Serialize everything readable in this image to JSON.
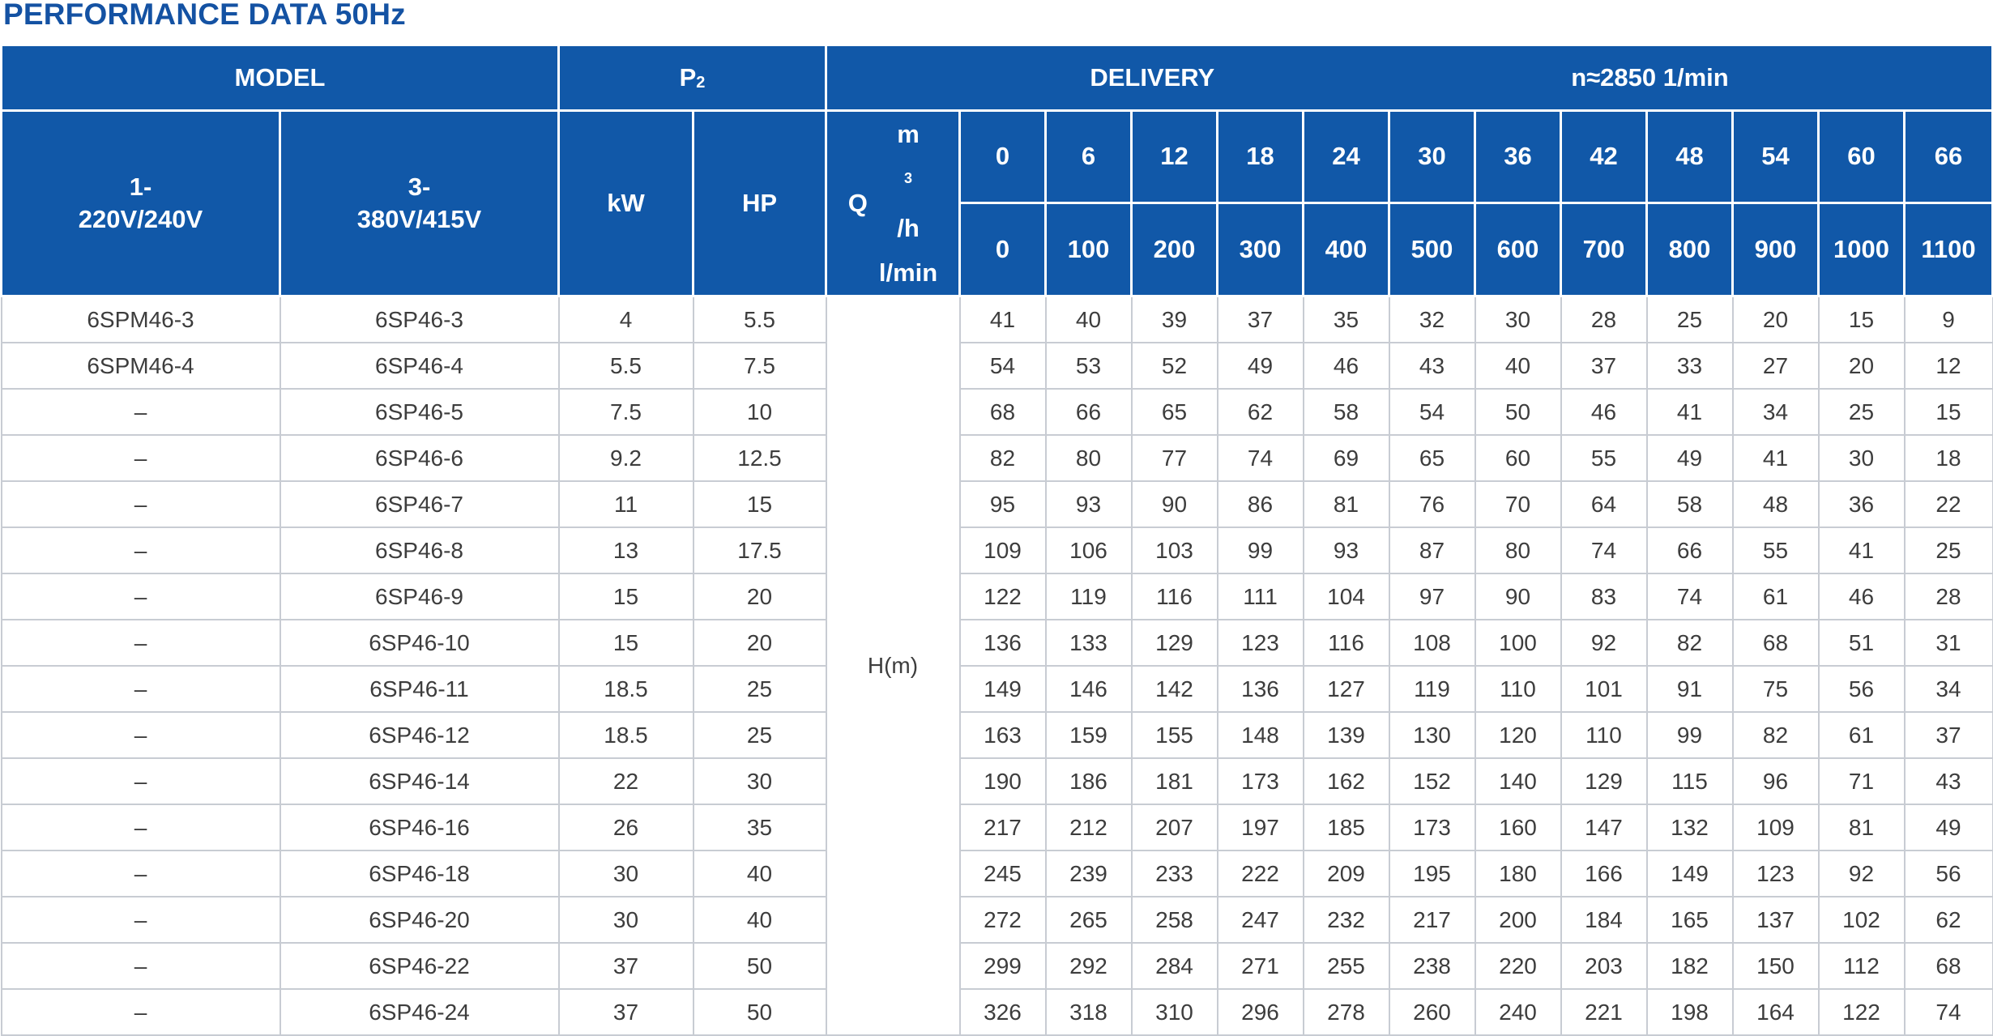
{
  "title": "PERFORMANCE DATA 50Hz",
  "header": {
    "model": "MODEL",
    "p2_main": "P",
    "p2_sub": "2",
    "delivery": "DELIVERY",
    "speed": "n≈2850  1/min",
    "single_phase": [
      "1-",
      "220V/240V"
    ],
    "three_phase": [
      "3-",
      "380V/415V"
    ],
    "kw": "kW",
    "hp": "HP",
    "q": "Q",
    "m3h_base": "m",
    "m3h_sup": "3",
    "m3h_tail": "/h",
    "lmin": "l/min",
    "flow_m3h": [
      "0",
      "6",
      "12",
      "18",
      "24",
      "30",
      "36",
      "42",
      "48",
      "54",
      "60",
      "66"
    ],
    "flow_lmin": [
      "0",
      "100",
      "200",
      "300",
      "400",
      "500",
      "600",
      "700",
      "800",
      "900",
      "1000",
      "1100"
    ]
  },
  "head_label": "H(m)",
  "rows": [
    {
      "m1": "6SPM46-3",
      "m3": "6SP46-3",
      "kw": "4",
      "hp": "5.5",
      "h": [
        "41",
        "40",
        "39",
        "37",
        "35",
        "32",
        "30",
        "28",
        "25",
        "20",
        "15",
        "9"
      ]
    },
    {
      "m1": "6SPM46-4",
      "m3": "6SP46-4",
      "kw": "5.5",
      "hp": "7.5",
      "h": [
        "54",
        "53",
        "52",
        "49",
        "46",
        "43",
        "40",
        "37",
        "33",
        "27",
        "20",
        "12"
      ]
    },
    {
      "m1": "–",
      "m3": "6SP46-5",
      "kw": "7.5",
      "hp": "10",
      "h": [
        "68",
        "66",
        "65",
        "62",
        "58",
        "54",
        "50",
        "46",
        "41",
        "34",
        "25",
        "15"
      ]
    },
    {
      "m1": "–",
      "m3": "6SP46-6",
      "kw": "9.2",
      "hp": "12.5",
      "h": [
        "82",
        "80",
        "77",
        "74",
        "69",
        "65",
        "60",
        "55",
        "49",
        "41",
        "30",
        "18"
      ]
    },
    {
      "m1": "–",
      "m3": "6SP46-7",
      "kw": "11",
      "hp": "15",
      "h": [
        "95",
        "93",
        "90",
        "86",
        "81",
        "76",
        "70",
        "64",
        "58",
        "48",
        "36",
        "22"
      ]
    },
    {
      "m1": "–",
      "m3": "6SP46-8",
      "kw": "13",
      "hp": "17.5",
      "h": [
        "109",
        "106",
        "103",
        "99",
        "93",
        "87",
        "80",
        "74",
        "66",
        "55",
        "41",
        "25"
      ]
    },
    {
      "m1": "–",
      "m3": "6SP46-9",
      "kw": "15",
      "hp": "20",
      "h": [
        "122",
        "119",
        "116",
        "111",
        "104",
        "97",
        "90",
        "83",
        "74",
        "61",
        "46",
        "28"
      ]
    },
    {
      "m1": "–",
      "m3": "6SP46-10",
      "kw": "15",
      "hp": "20",
      "h": [
        "136",
        "133",
        "129",
        "123",
        "116",
        "108",
        "100",
        "92",
        "82",
        "68",
        "51",
        "31"
      ]
    },
    {
      "m1": "–",
      "m3": "6SP46-11",
      "kw": "18.5",
      "hp": "25",
      "h": [
        "149",
        "146",
        "142",
        "136",
        "127",
        "119",
        "110",
        "101",
        "91",
        "75",
        "56",
        "34"
      ]
    },
    {
      "m1": "–",
      "m3": "6SP46-12",
      "kw": "18.5",
      "hp": "25",
      "h": [
        "163",
        "159",
        "155",
        "148",
        "139",
        "130",
        "120",
        "110",
        "99",
        "82",
        "61",
        "37"
      ]
    },
    {
      "m1": "–",
      "m3": "6SP46-14",
      "kw": "22",
      "hp": "30",
      "h": [
        "190",
        "186",
        "181",
        "173",
        "162",
        "152",
        "140",
        "129",
        "115",
        "96",
        "71",
        "43"
      ]
    },
    {
      "m1": "–",
      "m3": "6SP46-16",
      "kw": "26",
      "hp": "35",
      "h": [
        "217",
        "212",
        "207",
        "197",
        "185",
        "173",
        "160",
        "147",
        "132",
        "109",
        "81",
        "49"
      ]
    },
    {
      "m1": "–",
      "m3": "6SP46-18",
      "kw": "30",
      "hp": "40",
      "h": [
        "245",
        "239",
        "233",
        "222",
        "209",
        "195",
        "180",
        "166",
        "149",
        "123",
        "92",
        "56"
      ]
    },
    {
      "m1": "–",
      "m3": "6SP46-20",
      "kw": "30",
      "hp": "40",
      "h": [
        "272",
        "265",
        "258",
        "247",
        "232",
        "217",
        "200",
        "184",
        "165",
        "137",
        "102",
        "62"
      ]
    },
    {
      "m1": "–",
      "m3": "6SP46-22",
      "kw": "37",
      "hp": "50",
      "h": [
        "299",
        "292",
        "284",
        "271",
        "255",
        "238",
        "220",
        "203",
        "182",
        "150",
        "112",
        "68"
      ]
    },
    {
      "m1": "–",
      "m3": "6SP46-24",
      "kw": "37",
      "hp": "50",
      "h": [
        "326",
        "318",
        "310",
        "296",
        "278",
        "260",
        "240",
        "221",
        "198",
        "164",
        "122",
        "74"
      ]
    }
  ]
}
